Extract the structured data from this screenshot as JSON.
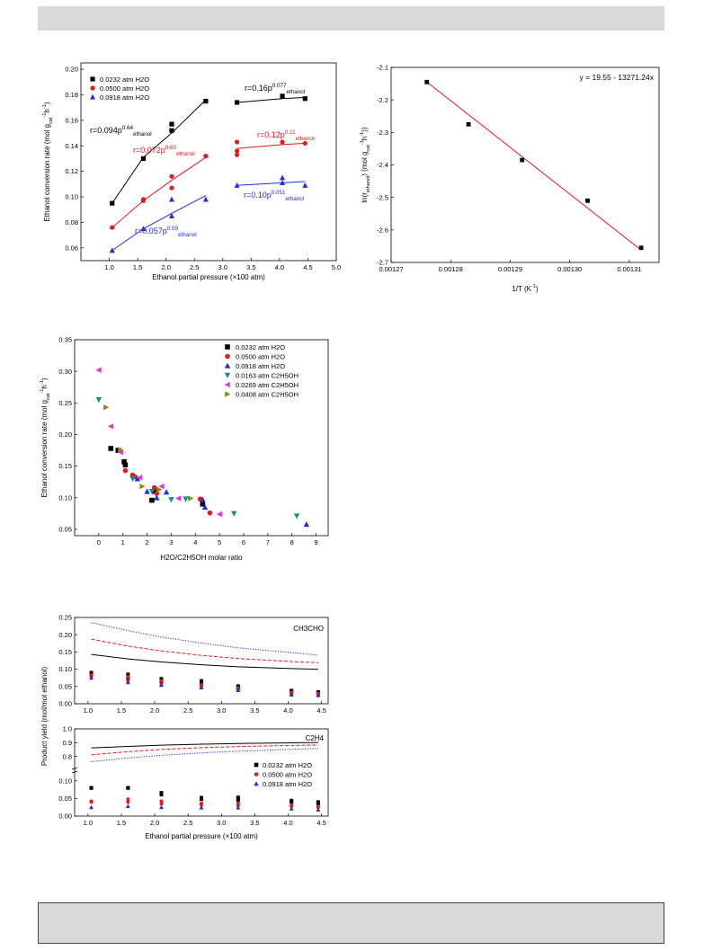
{
  "colors": {
    "s1": "#000000",
    "s2": "#e8191e",
    "s3": "#1f2fe0",
    "s4": "#1b8a8a",
    "s5": "#e633d4",
    "s6": "#8a8a12",
    "fit": "#e8191e"
  },
  "chart_data": [
    {
      "type": "scatter",
      "xlabel": "Ethanol partial pressure (×100 atm)",
      "ylabel": "Ethanol conversion rate (mol g",
      "ylabel_sub": "cat",
      "ylabel_sup": "-1",
      "ylabel_tail": "h",
      "ylabel_sup2": "-1",
      "ylabel_end": ")",
      "xlim": [
        0.5,
        5.0
      ],
      "ylim": [
        0.05,
        0.205
      ],
      "xticks": [
        "1.0",
        "1.5",
        "2.0",
        "2.5",
        "3.0",
        "3.5",
        "4.0",
        "4.5",
        "5.0"
      ],
      "yticks": [
        "0.06",
        "0.08",
        "0.10",
        "0.12",
        "0.14",
        "0.16",
        "0.18",
        "0.20"
      ],
      "series": [
        {
          "name": "0.0232 atm H2O",
          "marker": "square",
          "x": [
            1.05,
            1.6,
            2.1,
            2.1,
            2.7,
            3.25,
            4.05,
            4.45
          ],
          "y": [
            0.095,
            0.13,
            0.157,
            0.152,
            0.175,
            0.174,
            0.179,
            0.177
          ]
        },
        {
          "name": "0.0500 atm H2O",
          "marker": "circle",
          "x": [
            1.05,
            1.6,
            1.6,
            2.1,
            2.1,
            2.7,
            3.25,
            3.25,
            3.25,
            4.05,
            4.45
          ],
          "y": [
            0.076,
            0.097,
            0.098,
            0.116,
            0.107,
            0.132,
            0.143,
            0.136,
            0.133,
            0.143,
            0.142
          ]
        },
        {
          "name": "0.0918 atm H2O",
          "marker": "triangle",
          "x": [
            1.05,
            1.6,
            2.1,
            2.1,
            2.7,
            3.25,
            4.05,
            4.05,
            4.45
          ],
          "y": [
            0.058,
            0.075,
            0.085,
            0.098,
            0.098,
            0.109,
            0.115,
            0.111,
            0.109
          ]
        }
      ],
      "fits": [
        {
          "series": 0,
          "x": [
            1.05,
            1.6,
            2.1,
            2.7
          ],
          "y": [
            0.095,
            0.131,
            0.15,
            0.176
          ]
        },
        {
          "series": 0,
          "x": [
            3.25,
            4.05,
            4.45
          ],
          "y": [
            0.174,
            0.177,
            0.178
          ]
        },
        {
          "series": 1,
          "x": [
            1.05,
            1.6,
            2.1,
            2.7
          ],
          "y": [
            0.076,
            0.097,
            0.113,
            0.131
          ]
        },
        {
          "series": 1,
          "x": [
            3.25,
            4.05,
            4.45
          ],
          "y": [
            0.138,
            0.141,
            0.142
          ]
        },
        {
          "series": 2,
          "x": [
            1.05,
            1.6,
            2.1,
            2.7
          ],
          "y": [
            0.058,
            0.075,
            0.087,
            0.101
          ]
        },
        {
          "series": 2,
          "x": [
            3.25,
            4.05,
            4.45
          ],
          "y": [
            0.109,
            0.111,
            0.112
          ]
        }
      ],
      "annotations": [
        {
          "series": 0,
          "text": "r=0.094p",
          "sup": "0.64",
          "sub": "ethanol"
        },
        {
          "series": 0,
          "text": "r=0.16p",
          "sup": "0.077",
          "sub": "ethanol"
        },
        {
          "series": 1,
          "text": "r=0.072p",
          "sup": "0.60",
          "sub": "ethanol"
        },
        {
          "series": 1,
          "text": "r=0.12p",
          "sup": "0.11",
          "sub": "ethanol"
        },
        {
          "series": 2,
          "text": "r=0.057p",
          "sup": "0.59",
          "sub": "ethanol"
        },
        {
          "series": 2,
          "text": "r=0.10p",
          "sup": "0.051",
          "sub": "ethanol"
        }
      ]
    },
    {
      "type": "scatter",
      "xlabel": "1/T (K",
      "xlabel_sup": "-1",
      "xlabel_end": ")",
      "ylabel": "ln(r",
      "ylabel_sub": "ethanol",
      "ylabel_mid": ") (mol g",
      "ylabel_sub2": "cat",
      "ylabel_sup": "-1",
      "ylabel_tail": "h",
      "ylabel_sup2": "-1",
      "ylabel_end": "))",
      "xlim": [
        0.00127,
        0.001315
      ],
      "ylim": [
        -2.7,
        -2.1
      ],
      "xticks": [
        "0.00127",
        "0.00128",
        "0.00129",
        "0.00130",
        "0.00131"
      ],
      "yticks": [
        "-2.1",
        "-2.2",
        "-2.3",
        "-2.4",
        "-2.5",
        "-2.6",
        "-2.7"
      ],
      "equation": "y = 19.55 - 13271.24x",
      "points": {
        "x": [
          0.001276,
          0.001283,
          0.001292,
          0.001303,
          0.001312
        ],
        "y": [
          -2.145,
          -2.275,
          -2.385,
          -2.51,
          -2.655
        ]
      },
      "fit": {
        "x": [
          0.001276,
          0.001312
        ],
        "y": [
          -2.145,
          -2.662
        ]
      }
    },
    {
      "type": "scatter",
      "xlabel": "H2O/C2H5OH molar ratio",
      "ylabel": "Ethanol conversion rate (mol g",
      "ylabel_sub": "cat",
      "ylabel_sup": "-1",
      "ylabel_tail": "h",
      "ylabel_sup2": "-1",
      "ylabel_end": ")",
      "xlim": [
        -1,
        9.5
      ],
      "ylim": [
        0.04,
        0.35
      ],
      "xticks": [
        "0",
        "1",
        "2",
        "3",
        "4",
        "5",
        "6",
        "7",
        "8",
        "9"
      ],
      "yticks": [
        "0.05",
        "0.10",
        "0.15",
        "0.20",
        "0.25",
        "0.30",
        "0.35"
      ],
      "series": [
        {
          "name": "0.0232 atm H2O",
          "marker": "square",
          "x": [
            0.5,
            0.8,
            1.05,
            1.1,
            2.2,
            2.3,
            4.3
          ],
          "y": [
            0.178,
            0.175,
            0.157,
            0.152,
            0.096,
            0.11,
            0.09
          ]
        },
        {
          "name": "0.0500 atm H2O",
          "marker": "circle",
          "x": [
            1.1,
            1.4,
            1.5,
            2.3,
            2.4,
            4.2,
            4.6
          ],
          "y": [
            0.143,
            0.136,
            0.133,
            0.116,
            0.107,
            0.098,
            0.076
          ]
        },
        {
          "name": "0.0918 atm H2O",
          "marker": "triangle",
          "x": [
            0.9,
            1.6,
            2.0,
            2.4,
            2.8,
            4.3,
            4.4,
            8.6
          ],
          "y": [
            0.175,
            0.13,
            0.11,
            0.1,
            0.109,
            0.097,
            0.085,
            0.058
          ]
        },
        {
          "name": "0.0163 atm C2H5OH",
          "marker": "triangle-down",
          "x": [
            0.0,
            1.4,
            2.2,
            3.0,
            3.6,
            5.6,
            8.2
          ],
          "y": [
            0.255,
            0.13,
            0.11,
            0.097,
            0.098,
            0.075,
            0.071
          ]
        },
        {
          "name": "0.0269 atm C2H5OH",
          "marker": "triangle-left",
          "x": [
            0.0,
            0.5,
            0.9,
            1.7,
            2.6,
            3.3,
            5.0
          ],
          "y": [
            0.302,
            0.213,
            0.172,
            0.132,
            0.118,
            0.099,
            0.074
          ]
        },
        {
          "name": "0.0408 atm C2H5OH",
          "marker": "triangle-right",
          "x": [
            0.3,
            0.9,
            1.8,
            2.5,
            3.8
          ],
          "y": [
            0.243,
            0.176,
            0.118,
            0.113,
            0.099
          ]
        }
      ]
    },
    {
      "type": "scatter",
      "xlabel": "Ethanol partial pressure (×100 atm)",
      "ylabel": "Product yield (mol/mol ethanol)",
      "xlim": [
        0.8,
        4.6
      ],
      "xticks": [
        "1.0",
        "1.5",
        "2.0",
        "2.5",
        "3.0",
        "3.5",
        "4.0",
        "4.5"
      ],
      "legend": [
        "0.0232 atm H2O",
        "0.0500 atm H2O",
        "0.0918 atm H2O"
      ],
      "panels": [
        {
          "label": "CH3CHO",
          "ylim": [
            0,
            0.25
          ],
          "yticks": [
            "0.00",
            "0.05",
            "0.10",
            "0.15",
            "0.20",
            "0.25"
          ],
          "x": [
            1.05,
            1.6,
            2.1,
            2.7,
            3.25,
            4.05,
            4.45
          ],
          "points": [
            {
              "series": 0,
              "y": [
                0.09,
                0.085,
                0.072,
                0.066,
                0.051,
                0.038,
                0.034
              ]
            },
            {
              "series": 0,
              "y": [
                0.085,
                0.075,
                0.065,
                0.06,
                0.046,
                0.034,
                0.03
              ]
            },
            {
              "series": 1,
              "y": [
                0.083,
                0.078,
                0.066,
                0.055,
                0.046,
                0.033,
                0.03
              ]
            },
            {
              "series": 1,
              "y": [
                0.079,
                0.066,
                0.055,
                0.05,
                0.041,
                0.028,
                0.026
              ]
            },
            {
              "series": 2,
              "y": [
                0.075,
                0.062,
                0.054,
                0.047,
                0.039,
                0.026,
                0.024
              ]
            }
          ],
          "curves": [
            {
              "series": 0,
              "style": "solid",
              "x": [
                1.05,
                1.6,
                2.1,
                2.7,
                3.25,
                4.05,
                4.45
              ],
              "y": [
                0.143,
                0.13,
                0.121,
                0.113,
                0.107,
                0.102,
                0.1
              ]
            },
            {
              "series": 1,
              "style": "dashed",
              "x": [
                1.05,
                1.6,
                2.1,
                2.7,
                3.25,
                4.05,
                4.45
              ],
              "y": [
                0.187,
                0.167,
                0.153,
                0.14,
                0.131,
                0.122,
                0.119
              ]
            },
            {
              "series": 2,
              "style": "dotted",
              "x": [
                1.05,
                1.6,
                2.1,
                2.7,
                3.25,
                4.05,
                4.45
              ],
              "y": [
                0.235,
                0.212,
                0.193,
                0.176,
                0.162,
                0.148,
                0.141
              ]
            }
          ]
        },
        {
          "label": "C2H4",
          "ylim_lower": [
            0,
            0.12
          ],
          "ylim_upper": [
            0.7,
            1.0
          ],
          "yticks_lower": [
            "0.00",
            "0.05",
            "0.10"
          ],
          "yticks_upper": [
            "0.8",
            "0.9",
            "1.0"
          ],
          "x": [
            1.05,
            1.6,
            2.1,
            2.7,
            3.25,
            4.05,
            4.45
          ],
          "points": [
            {
              "series": 0,
              "y": [
                0.08,
                0.08,
                0.066,
                0.052,
                0.053,
                0.044,
                0.04
              ]
            },
            {
              "series": 0,
              "y": [
                0.08,
                0.08,
                0.061,
                0.048,
                0.046,
                0.04,
                0.036
              ]
            },
            {
              "series": 1,
              "y": [
                0.042,
                0.048,
                0.042,
                0.036,
                0.036,
                0.03,
                0.027
              ]
            },
            {
              "series": 1,
              "y": [
                0.04,
                0.04,
                0.035,
                0.032,
                0.03,
                0.028,
                0.025
              ]
            },
            {
              "series": 2,
              "y": [
                0.025,
                0.028,
                0.025,
                0.024,
                0.024,
                0.021,
                0.018
              ]
            }
          ],
          "curves": [
            {
              "series": 0,
              "style": "solid",
              "x": [
                1.05,
                1.6,
                2.1,
                2.7,
                3.25,
                4.05,
                4.45
              ],
              "y": [
                0.862,
                0.873,
                0.882,
                0.889,
                0.894,
                0.899,
                0.901
              ]
            },
            {
              "series": 1,
              "style": "dashed",
              "x": [
                1.05,
                1.6,
                2.1,
                2.7,
                3.25,
                4.05,
                4.45
              ],
              "y": [
                0.812,
                0.835,
                0.851,
                0.864,
                0.872,
                0.88,
                0.883
              ]
            },
            {
              "series": 2,
              "style": "dotted",
              "x": [
                1.05,
                1.6,
                2.1,
                2.7,
                3.25,
                4.05,
                4.45
              ],
              "y": [
                0.762,
                0.789,
                0.808,
                0.826,
                0.838,
                0.852,
                0.858
              ]
            }
          ]
        }
      ]
    }
  ]
}
